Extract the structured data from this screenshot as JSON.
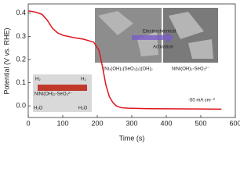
{
  "chart_data": {
    "type": "line",
    "x_label": "Time (s)",
    "y_label": "Potential (V vs. RHE)",
    "xlim": [
      0,
      600
    ],
    "xticks": [
      0,
      100,
      200,
      300,
      400,
      500,
      600
    ],
    "ylim": [
      -0.05,
      0.44
    ],
    "yticks": [
      {
        "value": 0,
        "label": "0.0"
      },
      0.1,
      0.2,
      0.3,
      0.4
    ],
    "x": [
      0,
      20,
      40,
      55,
      70,
      85,
      100,
      130,
      160,
      190,
      205,
      215,
      225,
      235,
      245,
      255,
      270,
      290,
      350,
      450,
      560
    ],
    "series": [
      {
        "name": "Potential",
        "color": "#e0141e",
        "values": [
          0.41,
          0.405,
          0.395,
          0.37,
          0.335,
          0.315,
          0.305,
          0.295,
          0.288,
          0.275,
          0.24,
          0.17,
          0.09,
          0.04,
          0.015,
          0.0,
          -0.008,
          -0.01,
          -0.012,
          -0.013,
          -0.014
        ]
      }
    ],
    "annotations": {
      "current": "-50 mA cm⁻²",
      "arrow_top": "Electrochemical",
      "arrow_bottom": "Activation",
      "left_image": "(Ni₃(OH)₂(SeO₃)₂)(OH)₂",
      "right_image": "NiNi(OH)₂-SeO₃²⁻",
      "schematic": "NiNi(OH)₂-SeO₃²⁻",
      "h2_left": "H₂",
      "h2_right": "H₂",
      "h2o_left": "H₂O",
      "h2o_right": "H₂O"
    }
  }
}
